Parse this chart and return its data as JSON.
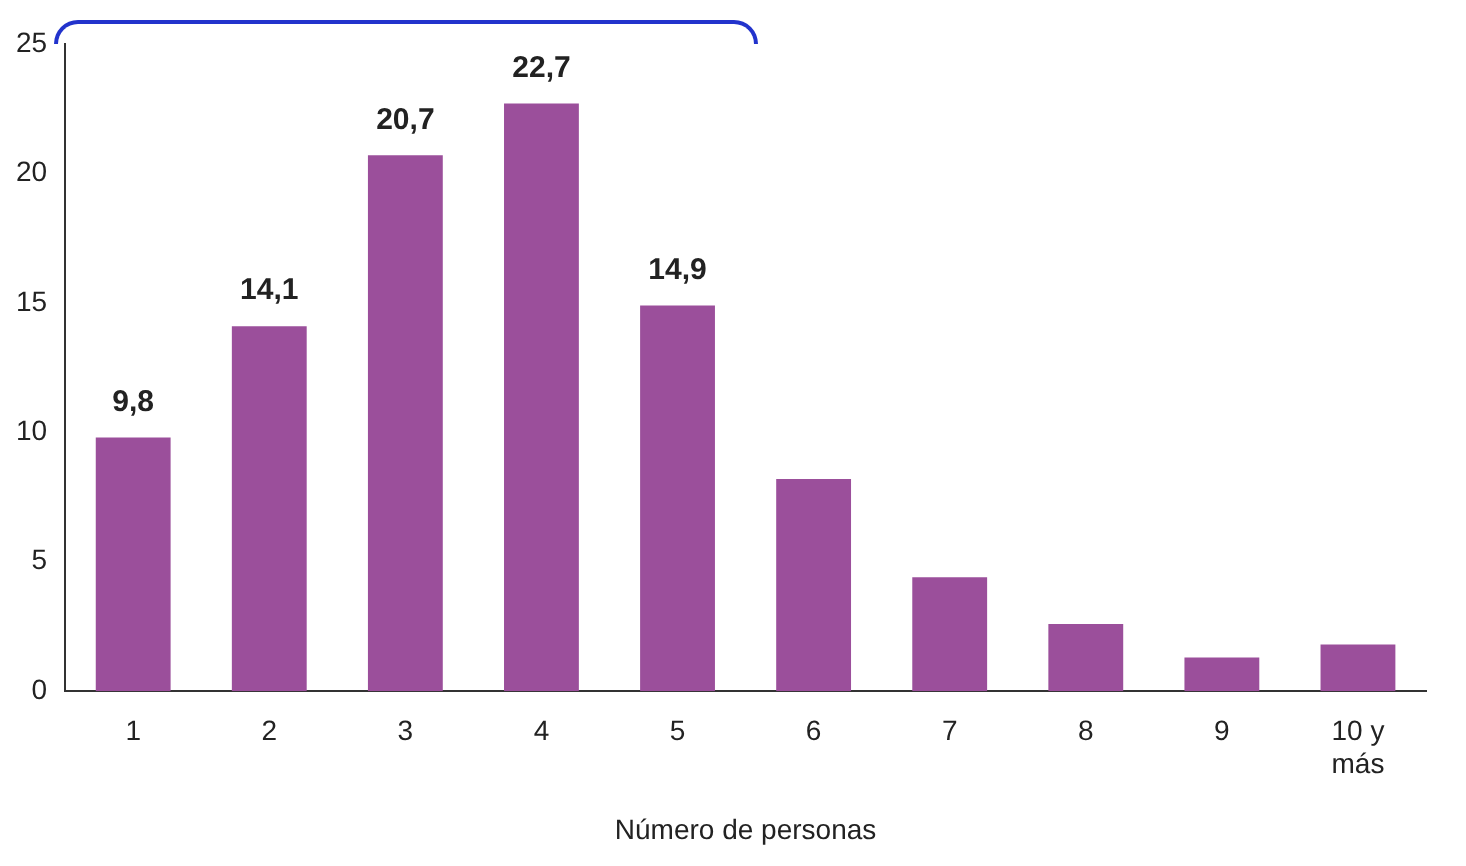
{
  "chart_data": {
    "type": "bar",
    "xlabel": "Número de personas",
    "categories": [
      "1",
      "2",
      "3",
      "4",
      "5",
      "6",
      "7",
      "8",
      "9",
      "10 y más"
    ],
    "values": [
      9.8,
      14.1,
      20.7,
      22.7,
      14.9,
      8.2,
      4.4,
      2.6,
      1.3,
      1.8
    ],
    "value_labels": [
      "9,8",
      "14,1",
      "20,7",
      "22,7",
      "14,9",
      null,
      null,
      null,
      null,
      null
    ],
    "color": "#9b4f9b",
    "ylim": [
      0,
      25
    ],
    "yticks": [
      0,
      5,
      10,
      15,
      20,
      25
    ],
    "grid": false,
    "legend": false
  }
}
